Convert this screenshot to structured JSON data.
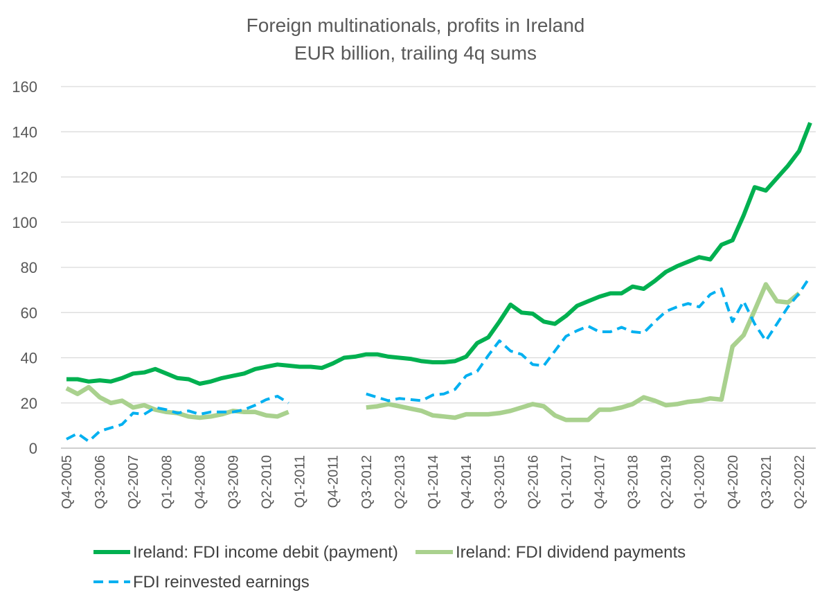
{
  "chart_data": {
    "type": "line",
    "title": "Foreign multinationals, profits in Ireland",
    "subtitle": "EUR billion, trailing 4q sums",
    "ylim": [
      0,
      160
    ],
    "yticks": [
      0,
      20,
      40,
      60,
      80,
      100,
      120,
      140,
      160
    ],
    "grid": true,
    "legend_placement": "bottom",
    "x": [
      "Q4-2005",
      "Q1-2006",
      "Q2-2006",
      "Q3-2006",
      "Q4-2006",
      "Q1-2007",
      "Q2-2007",
      "Q3-2007",
      "Q4-2007",
      "Q1-2008",
      "Q2-2008",
      "Q3-2008",
      "Q4-2008",
      "Q1-2009",
      "Q2-2009",
      "Q3-2009",
      "Q4-2009",
      "Q1-2010",
      "Q2-2010",
      "Q3-2010",
      "Q4-2010",
      "Q1-2011",
      "Q2-2011",
      "Q3-2011",
      "Q4-2011",
      "Q1-2012",
      "Q2-2012",
      "Q3-2012",
      "Q4-2012",
      "Q1-2013",
      "Q2-2013",
      "Q3-2013",
      "Q4-2013",
      "Q1-2014",
      "Q2-2014",
      "Q3-2014",
      "Q4-2014",
      "Q1-2015",
      "Q2-2015",
      "Q3-2015",
      "Q4-2015",
      "Q1-2016",
      "Q2-2016",
      "Q3-2016",
      "Q4-2016",
      "Q1-2017",
      "Q2-2017",
      "Q3-2017",
      "Q4-2017",
      "Q1-2018",
      "Q2-2018",
      "Q3-2018",
      "Q4-2018",
      "Q1-2019",
      "Q2-2019",
      "Q3-2019",
      "Q4-2019",
      "Q1-2020",
      "Q2-2020",
      "Q3-2020",
      "Q4-2020",
      "Q1-2021",
      "Q2-2021",
      "Q3-2021",
      "Q4-2021",
      "Q1-2022",
      "Q2-2022",
      "Q3-2022"
    ],
    "x_tick_labels": [
      "Q4-2005",
      "Q3-2006",
      "Q2-2007",
      "Q1-2008",
      "Q4-2008",
      "Q3-2009",
      "Q2-2010",
      "Q1-2011",
      "Q4-2011",
      "Q3-2012",
      "Q2-2013",
      "Q1-2014",
      "Q4-2014",
      "Q3-2015",
      "Q2-2016",
      "Q1-2017",
      "Q4-2017",
      "Q3-2018",
      "Q2-2019",
      "Q1-2020",
      "Q4-2020",
      "Q3-2021",
      "Q2-2022"
    ],
    "series": [
      {
        "name": "Ireland: FDI income debit (payment)",
        "color": "#00b050",
        "style": "solid-thick",
        "values": [
          30.5,
          30.5,
          29.5,
          30,
          29.5,
          31,
          33,
          33.5,
          35,
          33,
          31,
          30.5,
          28.5,
          29.5,
          31,
          32,
          33,
          35,
          36,
          37,
          36.5,
          36,
          36,
          35.5,
          37.5,
          40,
          40.5,
          41.5,
          41.5,
          40.5,
          40,
          39.5,
          38.5,
          38,
          38,
          38.5,
          40.5,
          46.5,
          49,
          56,
          63.5,
          60,
          59.5,
          56,
          55,
          58.5,
          63,
          65,
          67,
          68.5,
          68.5,
          71.5,
          70.5,
          74,
          78,
          80.5,
          82.5,
          84.5,
          83.5,
          90,
          92,
          103,
          115.5,
          114,
          119.5,
          125,
          131.5,
          144
        ]
      },
      {
        "name": "Ireland: FDI dividend payments",
        "color": "#a9d18e",
        "style": "solid-thick",
        "values": [
          26.5,
          24,
          27,
          22.5,
          20,
          21,
          18,
          19,
          17,
          16,
          15.5,
          14,
          13.5,
          14,
          15,
          16.5,
          16,
          16,
          14.5,
          14,
          16,
          null,
          null,
          null,
          null,
          null,
          null,
          18,
          18.5,
          19.5,
          18.5,
          17.5,
          16.5,
          14.5,
          14,
          13.5,
          15,
          15,
          15,
          15.5,
          16.5,
          18,
          19.5,
          18.5,
          14.5,
          12.5,
          12.5,
          12.5,
          17,
          17,
          18,
          19.5,
          22.5,
          21,
          19,
          19.5,
          20.5,
          21,
          22,
          21.5,
          45,
          50,
          61,
          72.5,
          65,
          64.5,
          68.5,
          null
        ]
      },
      {
        "name": "FDI reinvested earnings",
        "color": "#00b0f0",
        "style": "dashed",
        "values": [
          4,
          6.5,
          3,
          7.5,
          9,
          10.5,
          15.5,
          15,
          18,
          17,
          15.5,
          16.5,
          15,
          16,
          16,
          16,
          17,
          19,
          21.5,
          23,
          20,
          null,
          null,
          null,
          null,
          null,
          null,
          24,
          22.5,
          21,
          22,
          21.5,
          21,
          23.5,
          24,
          26,
          32,
          34,
          41,
          47.5,
          43,
          41.5,
          37,
          36.5,
          43,
          49.5,
          52,
          54,
          51.5,
          51.5,
          53.5,
          51.5,
          51,
          56,
          60.5,
          62.5,
          64,
          62.5,
          68,
          70.5,
          56,
          65,
          55,
          47.5,
          55,
          62.5,
          68.5,
          76
        ]
      }
    ]
  }
}
